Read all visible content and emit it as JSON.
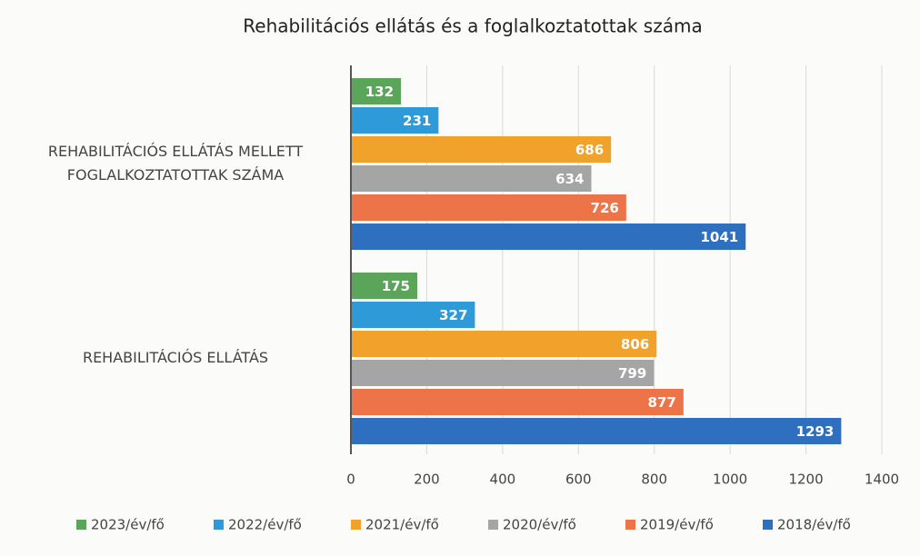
{
  "chart_data": {
    "type": "bar",
    "orientation": "horizontal",
    "title": "Rehabilitációs ellátás és a foglalkoztatottak száma",
    "categories": [
      "REHABILITÁCIÓS ELLÁTÁS MELLETT FOGLALKOZTATOTTAK SZÁMA",
      "REHABILITÁCIÓS ELLÁTÁS"
    ],
    "series": [
      {
        "name": "2023/év/fő",
        "color": "#5aa55a",
        "values": [
          132,
          175
        ]
      },
      {
        "name": "2022/év/fő",
        "color": "#2f9ad8",
        "values": [
          231,
          327
        ]
      },
      {
        "name": "2021/év/fő",
        "color": "#f0a22a",
        "values": [
          686,
          806
        ]
      },
      {
        "name": "2020/év/fő",
        "color": "#a5a5a5",
        "values": [
          634,
          799
        ]
      },
      {
        "name": "2019/év/fő",
        "color": "#ec7448",
        "values": [
          726,
          877
        ]
      },
      {
        "name": "2018/év/fő",
        "color": "#2f6fc0",
        "values": [
          1041,
          1293
        ]
      }
    ],
    "xlim": [
      0,
      1400
    ],
    "xticks": [
      0,
      200,
      400,
      600,
      800,
      1000,
      1200,
      1400
    ],
    "grid": true,
    "legend": "bottom"
  }
}
